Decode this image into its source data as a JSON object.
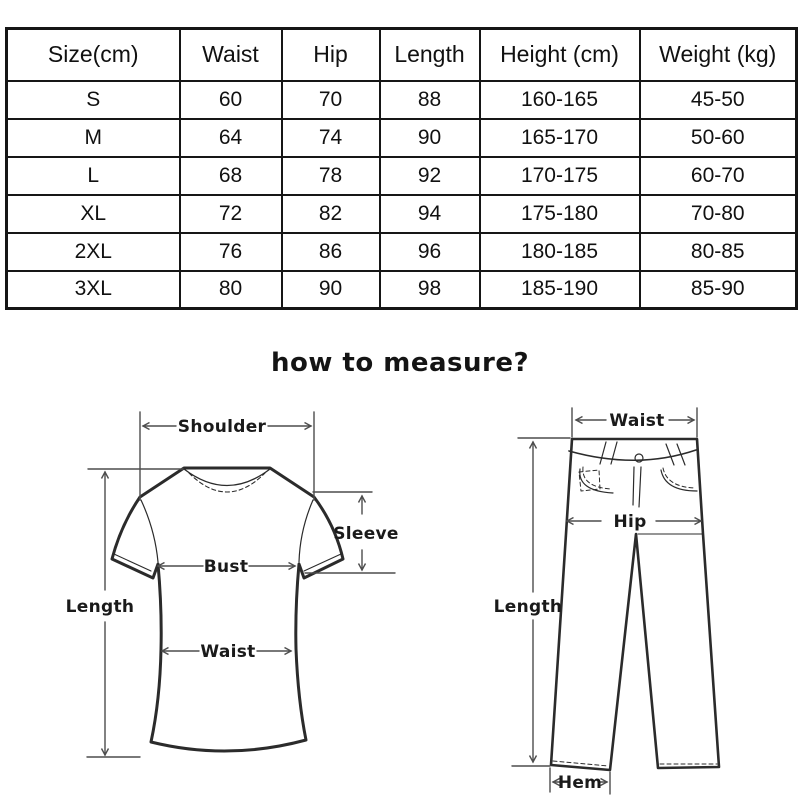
{
  "size_table": {
    "headers": [
      "Size(cm)",
      "Waist",
      "Hip",
      "Length",
      "Height (cm)",
      "Weight (kg)"
    ],
    "rows": [
      [
        "S",
        "60",
        "70",
        "88",
        "160-165",
        "45-50"
      ],
      [
        "M",
        "64",
        "74",
        "90",
        "165-170",
        "50-60"
      ],
      [
        "L",
        "68",
        "78",
        "92",
        "170-175",
        "60-70"
      ],
      [
        "XL",
        "72",
        "82",
        "94",
        "175-180",
        "70-80"
      ],
      [
        "2XL",
        "76",
        "86",
        "96",
        "180-185",
        "80-85"
      ],
      [
        "3XL",
        "80",
        "90",
        "98",
        "185-190",
        "85-90"
      ]
    ]
  },
  "section_title": "how to measure?",
  "shirt_diagram": {
    "shoulder_label": "Shoulder",
    "sleeve_label": "Sleeve",
    "bust_label": "Bust",
    "waist_label": "Waist",
    "length_label": "Length"
  },
  "pants_diagram": {
    "waist_label": "Waist",
    "hip_label": "Hip",
    "length_label": "Length",
    "hem_label": "Hem"
  },
  "colors": {
    "background": "#ffffff",
    "table_border": "#161616",
    "text": "#111111",
    "drawing_line": "#2b2b2b",
    "annotation_line": "#4d4d4d"
  }
}
